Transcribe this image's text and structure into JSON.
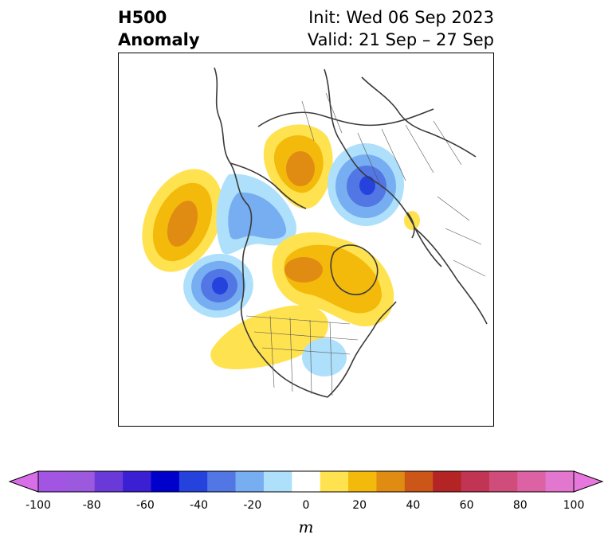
{
  "title": {
    "left_line1": "H500",
    "left_line2": "Anomaly",
    "right_line1": "Init: Wed 06 Sep 2023",
    "right_line2": "Valid: 21 Sep – 27 Sep"
  },
  "map": {
    "region": "Northern Hemisphere polar view (North America, Arctic, Eurasia)",
    "anomaly_centers": [
      {
        "feature": "positive",
        "location": "Gulf of Alaska / NE Pacific",
        "peak_m": 35
      },
      {
        "feature": "negative",
        "location": "Alaska / Bering",
        "peak_m": -25
      },
      {
        "feature": "negative",
        "location": "off Pacific Northwest coast",
        "peak_m": -45
      },
      {
        "feature": "positive",
        "location": "Siberia / Laptev region",
        "peak_m": 35
      },
      {
        "feature": "negative",
        "location": "Central Asia",
        "peak_m": -45
      },
      {
        "feature": "positive",
        "location": "Canadian Arctic / Greenland",
        "peak_m": 45
      },
      {
        "feature": "positive",
        "location": "Western US / Great Plains",
        "peak_m": 15
      },
      {
        "feature": "negative",
        "location": "Great Lakes / Northeast US",
        "peak_m": -15
      },
      {
        "feature": "positive",
        "location": "Japan",
        "peak_m": 15
      }
    ]
  },
  "colorbar": {
    "unit": "m",
    "ticks": [
      "-100",
      "-80",
      "-60",
      "-40",
      "-20",
      "0",
      "20",
      "40",
      "60",
      "80",
      "100"
    ],
    "bins": [
      {
        "range": "<-100",
        "color": "#d86ee8"
      },
      {
        "range": "-100 to -90",
        "color": "#a254e3"
      },
      {
        "range": "-90 to -80",
        "color": "#9d59de"
      },
      {
        "range": "-80 to -70",
        "color": "#6a3ad8"
      },
      {
        "range": "-70 to -60",
        "color": "#3b1fd3"
      },
      {
        "range": "-60 to -50",
        "color": "#0000cc"
      },
      {
        "range": "-50 to -40",
        "color": "#2542dd"
      },
      {
        "range": "-40 to -30",
        "color": "#5277e5"
      },
      {
        "range": "-30 to -20",
        "color": "#76aef1"
      },
      {
        "range": "-20 to -10",
        "color": "#aee0fb"
      },
      {
        "range": "-10 to 10",
        "color": "#ffffff"
      },
      {
        "range": "10 to 20",
        "color": "#ffe24f"
      },
      {
        "range": "20 to 30",
        "color": "#f3b90b"
      },
      {
        "range": "30 to 40",
        "color": "#e08c13"
      },
      {
        "range": "40 to 50",
        "color": "#cc5618"
      },
      {
        "range": "50 to 60",
        "color": "#b42424"
      },
      {
        "range": "60 to 70",
        "color": "#c23453"
      },
      {
        "range": "70 to 80",
        "color": "#d04c7a"
      },
      {
        "range": "80 to 90",
        "color": "#dc62a3"
      },
      {
        "range": "90 to 100",
        "color": "#e377d0"
      },
      {
        "range": ">100",
        "color": "#e877dd"
      }
    ]
  }
}
